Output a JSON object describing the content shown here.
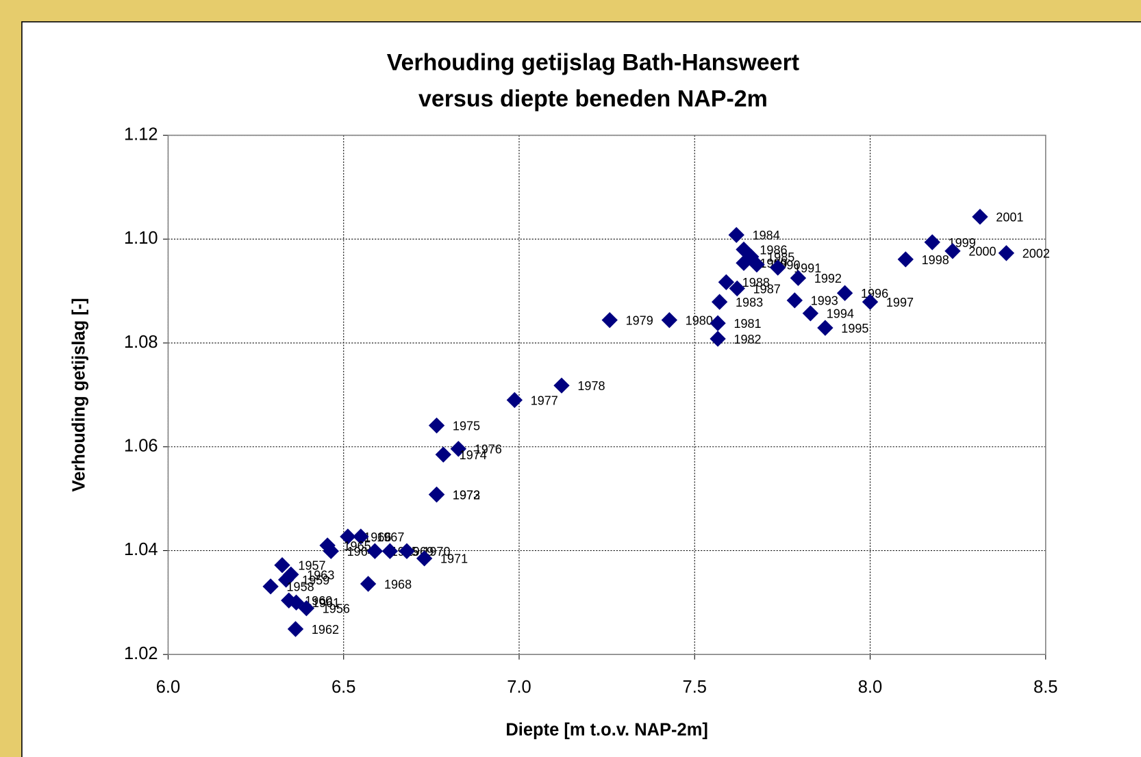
{
  "chart_data": {
    "type": "scatter",
    "title": [
      "Verhouding getijslag Bath-Hansweert",
      "versus diepte beneden NAP-2m"
    ],
    "x_label": "Diepte [m t.o.v. NAP-2m]",
    "y_label": "Verhouding getijslag [-]",
    "xlim": [
      6.0,
      8.5
    ],
    "xticks": [
      {
        "value": 6,
        "label": "6.0"
      },
      {
        "value": 6.5,
        "label": "6.5"
      },
      {
        "value": 7,
        "label": "7.0"
      },
      {
        "value": 7.5,
        "label": "7.5"
      },
      {
        "value": 8,
        "label": "8.0"
      },
      {
        "value": 8.5,
        "label": "8.5"
      }
    ],
    "ylim": [
      1.02,
      1.12
    ],
    "yticks": [
      1.02,
      1.04,
      1.06,
      1.08,
      {
        "value": 1.1,
        "label": "1.10"
      },
      1.12
    ],
    "grid": true,
    "series": [
      {
        "color": "#000080",
        "labels": [
          "2001",
          "1984",
          "1999",
          "2000",
          "2002",
          "1998",
          "1986",
          "1985",
          "1989",
          "1990",
          "1991",
          "1988",
          "1987",
          "1992",
          "1983",
          "1993",
          "1996",
          "1997",
          "1994",
          "1995",
          "1979",
          "1980",
          "1981",
          "1982",
          "1978",
          "1977",
          "1975",
          "1976",
          "1974",
          "1972",
          "1973",
          "1966",
          "1967",
          "1965",
          "1964",
          "1955",
          "1969",
          "1970",
          "1971",
          "1968",
          "1957",
          "1963",
          "1959",
          "1958",
          "1960",
          "1961",
          "1956",
          "1962"
        ],
        "x": [
          8.313,
          7.619,
          8.177,
          8.235,
          8.388,
          8.101,
          7.64,
          7.661,
          7.64,
          7.677,
          7.737,
          7.59,
          7.621,
          7.795,
          7.571,
          7.785,
          7.928,
          8.0,
          7.83,
          7.872,
          7.258,
          7.428,
          7.566,
          7.566,
          7.121,
          6.987,
          6.765,
          6.827,
          6.784,
          6.765,
          6.765,
          6.512,
          6.549,
          6.454,
          6.464,
          6.589,
          6.632,
          6.68,
          6.73,
          6.57,
          6.325,
          6.35,
          6.336,
          6.292,
          6.344,
          6.365,
          6.394,
          6.363
        ],
        "values": [
          1.1043,
          1.1008,
          1.0994,
          1.0977,
          1.0973,
          1.0961,
          1.098,
          1.0966,
          1.0954,
          1.0951,
          1.0945,
          1.0917,
          1.0905,
          1.0925,
          1.0879,
          1.0882,
          1.0896,
          1.0879,
          1.0857,
          1.0829,
          1.0844,
          1.0844,
          1.0838,
          1.0808,
          1.0718,
          1.069,
          1.0641,
          1.0596,
          1.0585,
          1.0508,
          1.0508,
          1.0427,
          1.0427,
          1.041,
          1.0399,
          1.0399,
          1.0399,
          1.0399,
          1.0385,
          1.0336,
          1.0372,
          1.0354,
          1.0344,
          1.0331,
          1.0304,
          1.03,
          1.0289,
          1.0249
        ]
      }
    ]
  }
}
